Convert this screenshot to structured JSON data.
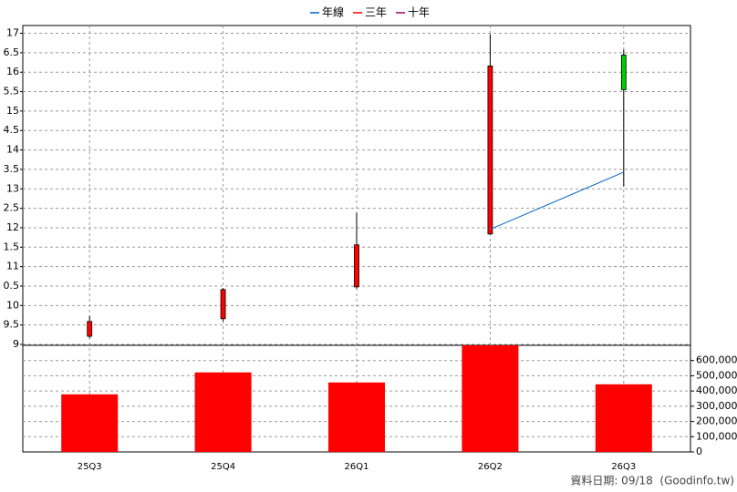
{
  "chart_data": {
    "type": "candlestick",
    "categories": [
      "25Q3",
      "25Q4",
      "26Q1",
      "26Q2",
      "26Q3"
    ],
    "open": [
      9.21,
      9.66,
      10.48,
      11.84,
      16.44
    ],
    "high": [
      9.73,
      10.45,
      12.38,
      16.98,
      16.58
    ],
    "low": [
      9.16,
      9.59,
      10.43,
      11.82,
      13.06
    ],
    "close": [
      9.59,
      10.41,
      11.56,
      16.16,
      15.55
    ],
    "up_color": "#ff0000",
    "down_color": "#00cc00",
    "series": [
      {
        "name": "年線",
        "color": "#0066cc",
        "values": [
          null,
          null,
          null,
          11.96,
          13.43
        ]
      },
      {
        "name": "三年",
        "color": "#ff0000",
        "values": [
          null,
          null,
          null,
          null,
          null
        ]
      },
      {
        "name": "十年",
        "color": "#990066",
        "values": [
          null,
          null,
          null,
          null,
          null
        ]
      }
    ],
    "volume": {
      "values": [
        378000,
        522000,
        456000,
        700000,
        444000
      ],
      "color": "#ff0000"
    },
    "ylim": [
      9,
      17.2
    ],
    "yticks": [
      9,
      {
        "value": 9.5,
        "label": "9.5"
      },
      10,
      {
        "value": 10.5,
        "label": "0.5"
      },
      11,
      {
        "value": 11.5,
        "label": "1.5"
      },
      12,
      {
        "value": 12.5,
        "label": "2.5"
      },
      13,
      {
        "value": 13.5,
        "label": "3.5"
      },
      14,
      {
        "value": 14.5,
        "label": "4.5"
      },
      15,
      {
        "value": 15.5,
        "label": "5.5"
      },
      16,
      {
        "value": 16.5,
        "label": "6.5"
      },
      17
    ],
    "y2lim": [
      0,
      700000
    ],
    "y2ticks": [
      0,
      {
        "value": 100000,
        "label": "100,000"
      },
      {
        "value": 200000,
        "label": "200,000"
      },
      {
        "value": 300000,
        "label": "300,000"
      },
      {
        "value": 400000,
        "label": "400,000"
      },
      {
        "value": 500000,
        "label": "500,000"
      },
      {
        "value": 600000,
        "label": "600,000"
      }
    ],
    "grid": true,
    "legend": "top",
    "source": "資料日期: 09/18  (Goodinfo.tw)"
  }
}
